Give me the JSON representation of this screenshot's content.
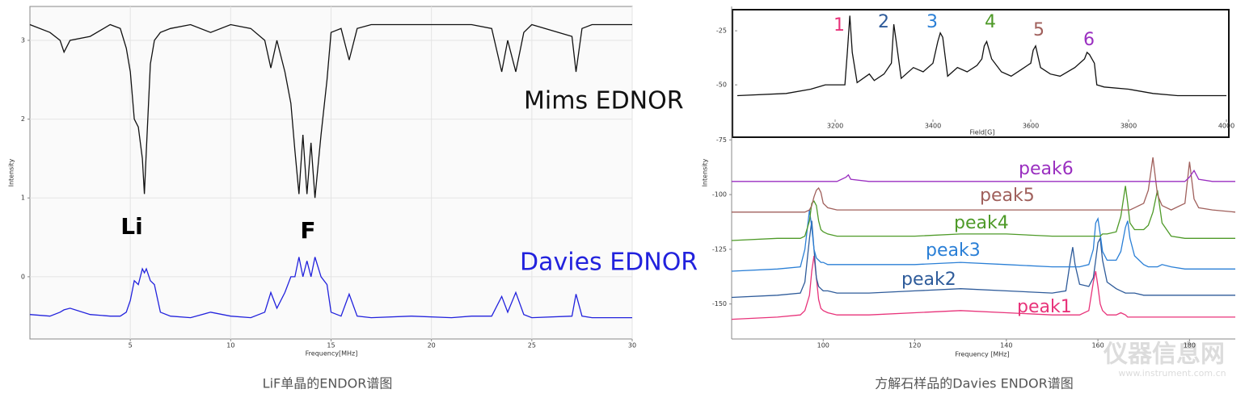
{
  "chart_data": [
    {
      "type": "line",
      "xlabel": "Frequency[MHz]",
      "ylabel": "Intensity",
      "x": [
        0,
        1,
        1.5,
        1.7,
        2,
        3,
        4,
        4.5,
        4.8,
        5,
        5.2,
        5.4,
        5.6,
        5.7,
        5.8,
        6,
        6.2,
        6.5,
        7,
        8,
        9,
        10,
        11,
        11.7,
        12,
        12.3,
        12.7,
        13,
        13.2,
        13.4,
        13.6,
        13.8,
        14,
        14.2,
        14.5,
        14.8,
        15,
        15.5,
        15.9,
        16.3,
        17,
        19,
        21,
        22,
        23,
        23.5,
        23.8,
        24.2,
        24.6,
        25,
        27,
        27.2,
        27.5,
        28,
        30
      ],
      "series": [
        {
          "name": "Mims EDNOR",
          "color": "#111111",
          "values": [
            3.2,
            3.1,
            3.0,
            2.85,
            3.0,
            3.05,
            3.2,
            3.15,
            2.9,
            2.6,
            2.0,
            1.9,
            1.5,
            1.05,
            1.6,
            2.7,
            3.0,
            3.1,
            3.15,
            3.2,
            3.1,
            3.2,
            3.15,
            3.0,
            2.65,
            3.0,
            2.6,
            2.2,
            1.6,
            1.05,
            1.8,
            1.05,
            1.7,
            1.0,
            1.8,
            2.5,
            3.1,
            3.15,
            2.75,
            3.15,
            3.2,
            3.2,
            3.2,
            3.2,
            3.15,
            2.6,
            3.0,
            2.6,
            3.1,
            3.2,
            3.05,
            2.6,
            3.15,
            3.2,
            3.2
          ]
        },
        {
          "name": "Davies EDNOR",
          "color": "#2222dd",
          "values": [
            -0.48,
            -0.5,
            -0.45,
            -0.42,
            -0.4,
            -0.48,
            -0.5,
            -0.5,
            -0.45,
            -0.3,
            -0.05,
            -0.1,
            0.1,
            0.05,
            0.1,
            -0.05,
            -0.1,
            -0.45,
            -0.5,
            -0.52,
            -0.45,
            -0.5,
            -0.52,
            -0.45,
            -0.2,
            -0.4,
            -0.2,
            0.0,
            0.0,
            0.25,
            0.0,
            0.2,
            0.0,
            0.25,
            0.0,
            -0.1,
            -0.45,
            -0.5,
            -0.22,
            -0.5,
            -0.52,
            -0.5,
            -0.52,
            -0.5,
            -0.5,
            -0.25,
            -0.45,
            -0.2,
            -0.48,
            -0.52,
            -0.5,
            -0.22,
            -0.5,
            -0.52,
            -0.52
          ]
        }
      ],
      "annotations": [
        "Li",
        "F"
      ],
      "xlim": [
        0,
        30
      ],
      "xticks": [
        5,
        10,
        15,
        20,
        25,
        30
      ],
      "ylim": [
        -0.79,
        3.43
      ],
      "yticks": [
        0,
        1,
        2,
        3
      ],
      "grid": true
    },
    {
      "type": "line",
      "xlabel": "Frequency [MHz]",
      "ylabel": "Intensity",
      "x": [
        80,
        90,
        95,
        96,
        97,
        97.5,
        98,
        98.5,
        99,
        99.5,
        100,
        101,
        103,
        105,
        105.5,
        106,
        110,
        120,
        130,
        140,
        150,
        153,
        154,
        154.5,
        155,
        156,
        158,
        159,
        159.5,
        160,
        160.5,
        161,
        162,
        164,
        165,
        166,
        166.5,
        167,
        168,
        170,
        171,
        172,
        173,
        174,
        176,
        179,
        180,
        181,
        182,
        185,
        190
      ],
      "series": [
        {
          "name": "peak1",
          "color": "#e8337a",
          "values": [
            -157,
            -156,
            -155,
            -153,
            -146,
            -135,
            -128,
            -138,
            -148,
            -152,
            -153,
            -154,
            -155,
            -155,
            -155,
            -155,
            -155,
            -154,
            -153,
            -154,
            -155,
            -155,
            -155,
            -155,
            -155,
            -155,
            -153,
            -140,
            -135,
            -142,
            -150,
            -153,
            -155,
            -155,
            -154,
            -155,
            -156,
            -156,
            -156,
            -156,
            -156,
            -156,
            -156,
            -156,
            -156,
            -156,
            -156,
            -156,
            -156,
            -156,
            -156
          ]
        },
        {
          "name": "peak2",
          "color": "#2e5b9a",
          "values": [
            -147,
            -146,
            -145,
            -140,
            -120,
            -112,
            -125,
            -138,
            -142,
            -143,
            -144,
            -144,
            -145,
            -145,
            -145,
            -145,
            -145,
            -144,
            -143,
            -144,
            -145,
            -144,
            -130,
            -124,
            -132,
            -141,
            -142,
            -138,
            -130,
            -122,
            -120,
            -130,
            -140,
            -143,
            -144,
            -145,
            -145,
            -145,
            -145,
            -146,
            -146,
            -146,
            -146,
            -146,
            -146,
            -146,
            -146,
            -146,
            -146,
            -146,
            -146
          ]
        },
        {
          "name": "peak3",
          "color": "#2a7fd6",
          "values": [
            -135,
            -134,
            -133,
            -125,
            -107,
            -115,
            -125,
            -129,
            -130,
            -131,
            -131,
            -132,
            -132,
            -132,
            -132,
            -132,
            -132,
            -132,
            -131,
            -132,
            -133,
            -133,
            -133,
            -133,
            -133,
            -133,
            -132,
            -125,
            -113,
            -111,
            -118,
            -126,
            -130,
            -130,
            -126,
            -115,
            -112,
            -120,
            -128,
            -132,
            -133,
            -133,
            -133,
            -132,
            -133,
            -134,
            -134,
            -134,
            -134,
            -134,
            -134
          ]
        },
        {
          "name": "peak4",
          "color": "#4e9a28",
          "values": [
            -121,
            -120,
            -120,
            -119,
            -112,
            -104,
            -103,
            -105,
            -112,
            -116,
            -117,
            -118,
            -119,
            -119,
            -119,
            -119,
            -119,
            -119,
            -118,
            -118,
            -119,
            -119,
            -119,
            -119,
            -119,
            -119,
            -119,
            -119,
            -119,
            -119,
            -119,
            -118,
            -118,
            -117,
            -110,
            -96,
            -104,
            -113,
            -116,
            -116,
            -114,
            -108,
            -98,
            -113,
            -119,
            -120,
            -120,
            -120,
            -120,
            -120,
            -120
          ]
        },
        {
          "name": "peak5",
          "color": "#a0605c",
          "values": [
            -108,
            -108,
            -108,
            -108,
            -107,
            -105,
            -101,
            -98,
            -97,
            -99,
            -104,
            -106,
            -107,
            -107,
            -107,
            -107,
            -107,
            -107,
            -107,
            -107,
            -107,
            -107,
            -107,
            -107,
            -107,
            -107,
            -107,
            -107,
            -107,
            -107,
            -107,
            -107,
            -107,
            -107,
            -107,
            -107,
            -107,
            -107,
            -106,
            -104,
            -98,
            -83,
            -100,
            -105,
            -107,
            -104,
            -85,
            -102,
            -106,
            -107,
            -108
          ]
        },
        {
          "name": "peak6",
          "color": "#9a2fc0",
          "values": [
            -94,
            -94,
            -94,
            -94,
            -94,
            -94,
            -94,
            -94,
            -94,
            -94,
            -94,
            -94,
            -94,
            -92,
            -91,
            -93,
            -94,
            -94,
            -94,
            -94,
            -94,
            -94,
            -94,
            -94,
            -94,
            -94,
            -94,
            -94,
            -94,
            -94,
            -94,
            -94,
            -94,
            -94,
            -94,
            -94,
            -94,
            -94,
            -94,
            -94,
            -94,
            -94,
            -94,
            -94,
            -94,
            -94,
            -92,
            -89,
            -93,
            -94,
            -94
          ]
        }
      ],
      "xlim": [
        80,
        190
      ],
      "xticks": [
        100,
        120,
        140,
        160,
        180
      ],
      "ylim": [
        -166,
        -14
      ],
      "yticks": [
        -75,
        -100,
        -125,
        -150
      ],
      "grid": false
    },
    {
      "type": "line",
      "xlabel": "Field[G]",
      "x": [
        3000,
        3100,
        3150,
        3180,
        3220,
        3225,
        3230,
        3235,
        3245,
        3270,
        3280,
        3300,
        3315,
        3320,
        3325,
        3335,
        3360,
        3380,
        3400,
        3410,
        3415,
        3420,
        3430,
        3450,
        3470,
        3490,
        3500,
        3505,
        3510,
        3520,
        3540,
        3560,
        3580,
        3600,
        3605,
        3610,
        3620,
        3640,
        3660,
        3690,
        3710,
        3715,
        3720,
        3730,
        3735,
        3750,
        3800,
        3850,
        3900,
        4000
      ],
      "series": [
        {
          "color": "#111111",
          "values": [
            -55,
            -54,
            -52,
            -50,
            -50,
            -35,
            -18,
            -35,
            -49,
            -45,
            -48,
            -45,
            -40,
            -22,
            -30,
            -47,
            -42,
            -44,
            -40,
            -30,
            -26,
            -28,
            -46,
            -42,
            -44,
            -41,
            -38,
            -32,
            -30,
            -38,
            -44,
            -46,
            -43,
            -40,
            -34,
            -32,
            -42,
            -45,
            -46,
            -42,
            -38,
            -35,
            -36,
            -40,
            -50,
            -51,
            -52,
            -54,
            -55,
            -55
          ]
        }
      ],
      "annotations": [
        {
          "text": "1",
          "color": "#e8337a"
        },
        {
          "text": "2",
          "color": "#2e5b9a"
        },
        {
          "text": "3",
          "color": "#2a7fd6"
        },
        {
          "text": "4",
          "color": "#4e9a28"
        },
        {
          "text": "5",
          "color": "#a0605c"
        },
        {
          "text": "6",
          "color": "#9a2fc0"
        }
      ],
      "xlim": [
        3000,
        4000
      ],
      "xticks": [
        3200,
        3400,
        3600,
        3800,
        4000
      ],
      "ylim": [
        -66,
        -16
      ],
      "yticks": [
        -25,
        -50
      ],
      "grid": false
    }
  ],
  "captions": [
    "LiF单晶的ENDOR谱图",
    "方解石样品的Davies ENDOR谱图"
  ],
  "watermark": {
    "title": "仪器信息网",
    "url": "www.instrument.com.cn"
  }
}
